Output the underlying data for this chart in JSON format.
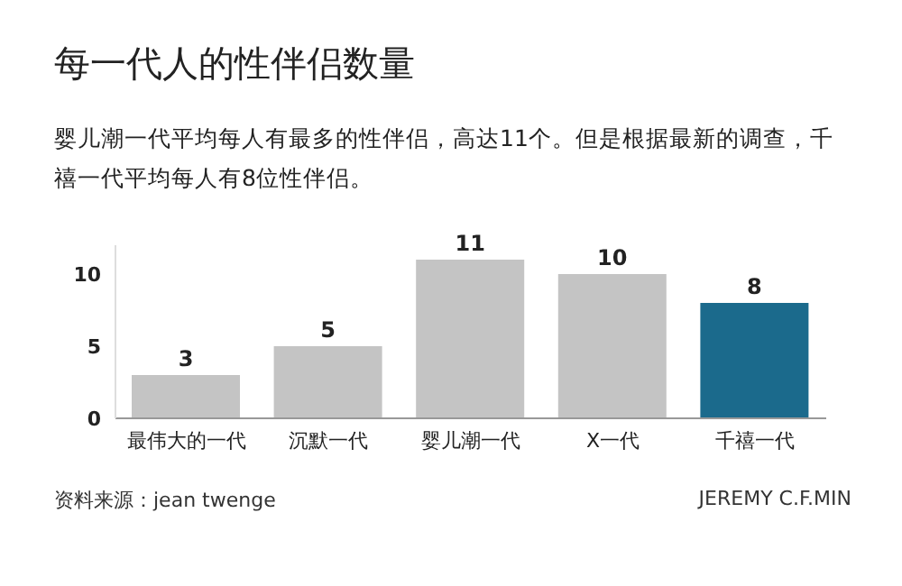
{
  "chart_data": {
    "type": "bar",
    "title": "每一代人的性伴侣数量",
    "subtitle": "婴儿潮一代平均每人有最多的性伴侣，高达11个。但是根据最新的调查，千禧一代平均每人有8位性伴侣。",
    "categories": [
      "最伟大的一代",
      "沉默一代",
      "婴儿潮一代",
      "X一代",
      "千禧一代"
    ],
    "values": [
      3,
      5,
      11,
      10,
      8
    ],
    "colors": [
      "#c4c4c4",
      "#c4c4c4",
      "#c4c4c4",
      "#c4c4c4",
      "#1b6a8c"
    ],
    "ylim": [
      0,
      12
    ],
    "yticks": [
      0,
      5,
      10
    ],
    "grid": false,
    "data_labels": true,
    "annotations": [
      "资料来源：jean twenge",
      "JEREMY C.F.MIN"
    ]
  }
}
